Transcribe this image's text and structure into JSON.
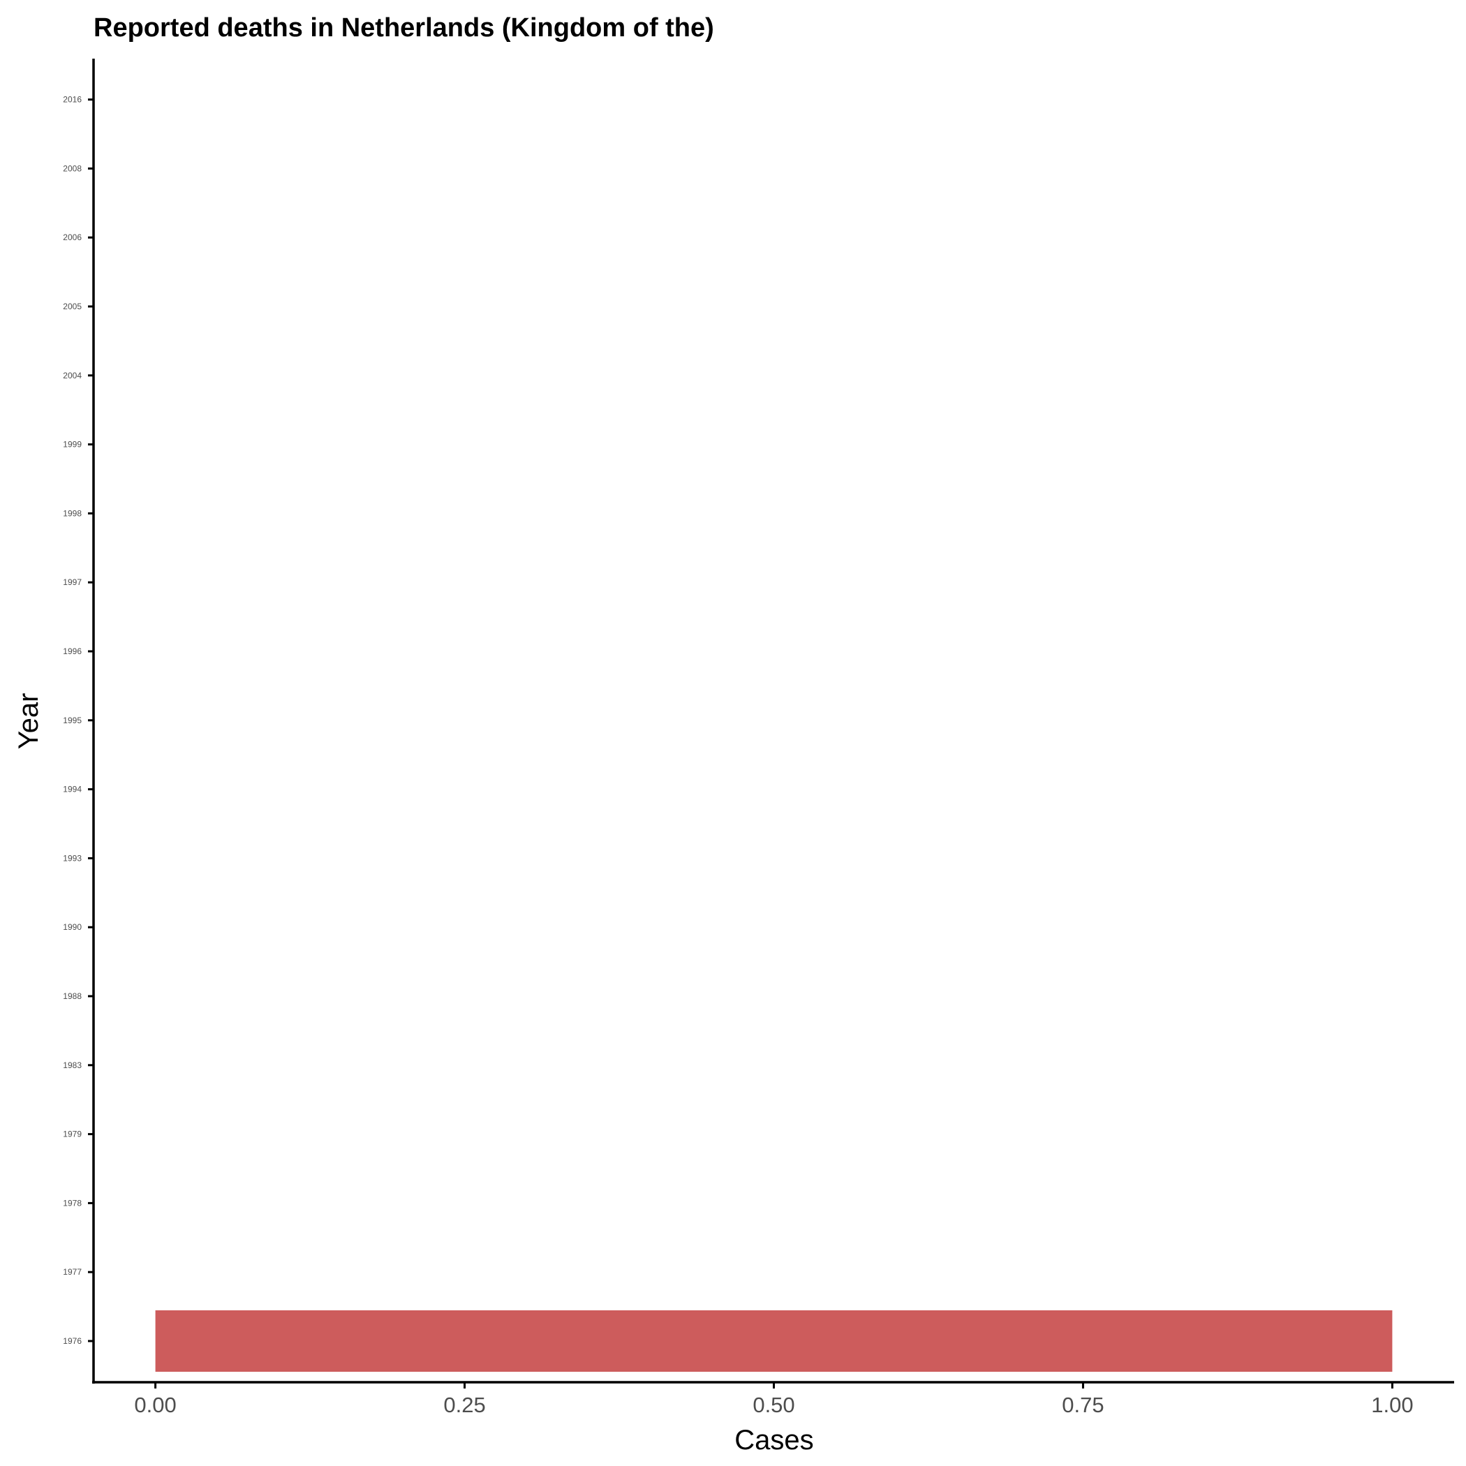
{
  "chart_data": {
    "type": "bar",
    "orientation": "horizontal",
    "title": "Reported deaths in Netherlands (Kingdom of the)",
    "xlabel": "Cases",
    "ylabel": "Year",
    "categories": [
      "1976",
      "1977",
      "1978",
      "1979",
      "1983",
      "1988",
      "1990",
      "1993",
      "1994",
      "1995",
      "1996",
      "1997",
      "1998",
      "1999",
      "2004",
      "2005",
      "2006",
      "2008",
      "2016"
    ],
    "values": [
      1,
      0,
      0,
      0,
      0,
      0,
      0,
      0,
      0,
      0,
      0,
      0,
      0,
      0,
      0,
      0,
      0,
      0,
      0
    ],
    "xlim": [
      -0.05,
      1.05
    ],
    "xticks": [
      "0.00",
      "0.25",
      "0.50",
      "0.75",
      "1.00"
    ],
    "bar_color": "#cd5c5c",
    "grid": false,
    "legend": "none"
  }
}
